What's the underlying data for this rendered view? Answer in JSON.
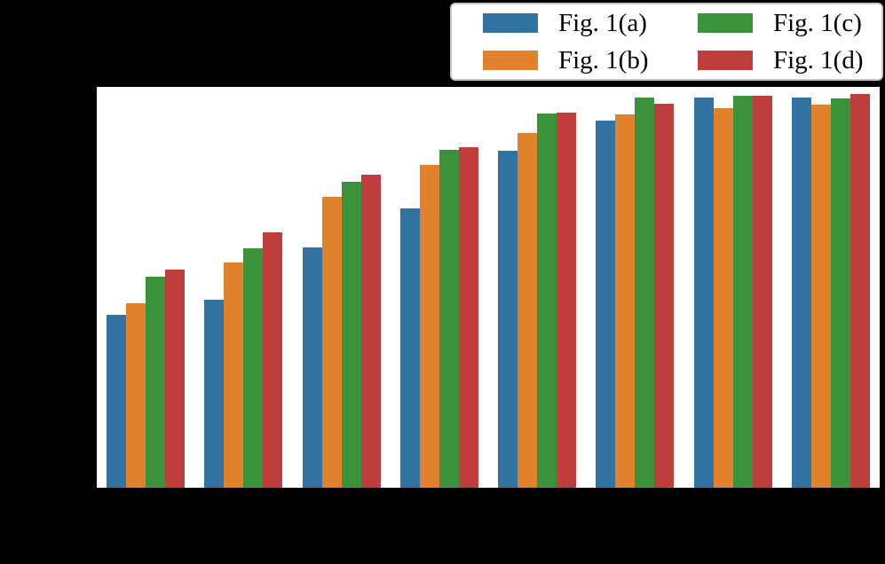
{
  "page": {
    "background_color": "#000000",
    "plot_background_color": "#ffffff"
  },
  "chart_data": {
    "type": "bar",
    "title": "",
    "xlabel": "",
    "ylabel": "",
    "categories": [
      "",
      "",
      "",
      "",
      "",
      "",
      "",
      ""
    ],
    "group_count": 8,
    "ylim": [
      0,
      1.0
    ],
    "grid": false,
    "axis_tick_labels_visible": false,
    "legend_position": "top-right-outside",
    "series": [
      {
        "name": "Fig. 1(a)",
        "key": "fig-1a",
        "color": "#3274A1",
        "values": [
          0.431,
          0.47,
          0.6,
          0.698,
          0.84,
          0.915,
          0.974,
          0.974
        ]
      },
      {
        "name": "Fig. 1(b)",
        "key": "fig-1b",
        "color": "#E1812C",
        "values": [
          0.461,
          0.563,
          0.726,
          0.805,
          0.886,
          0.931,
          0.946,
          0.955
        ]
      },
      {
        "name": "Fig. 1(c)",
        "key": "fig-1c",
        "color": "#3A923A",
        "values": [
          0.527,
          0.598,
          0.764,
          0.842,
          0.933,
          0.974,
          0.977,
          0.972
        ]
      },
      {
        "name": "Fig. 1(d)",
        "key": "fig-1d",
        "color": "#C03D3E",
        "values": [
          0.545,
          0.638,
          0.782,
          0.849,
          0.937,
          0.958,
          0.977,
          0.982
        ]
      }
    ]
  },
  "legend": {
    "background": "#ffffff",
    "border_color": "#c9c9c9",
    "entries": [
      {
        "label": "Fig. 1(a)",
        "color": "#3274A1"
      },
      {
        "label": "Fig. 1(b)",
        "color": "#E1812C"
      },
      {
        "label": "Fig. 1(c)",
        "color": "#3A923A"
      },
      {
        "label": "Fig. 1(d)",
        "color": "#C03D3E"
      }
    ]
  }
}
